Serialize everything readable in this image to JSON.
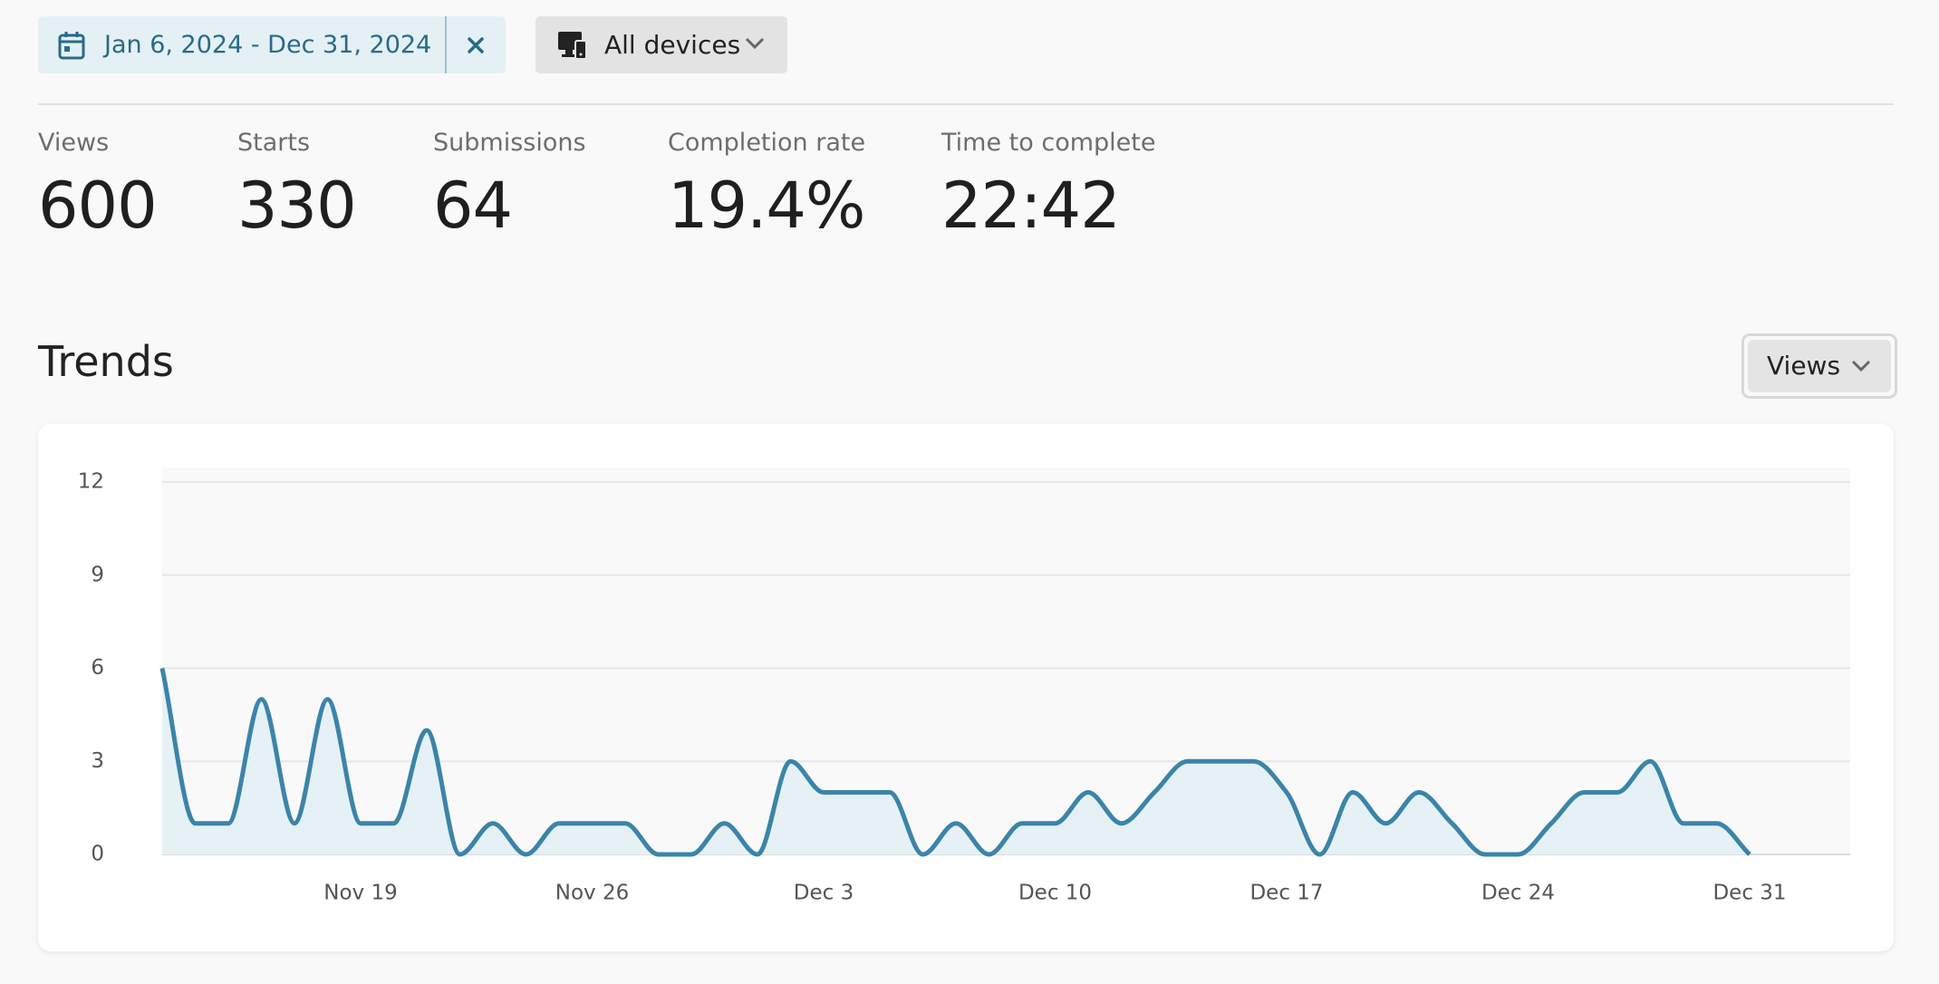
{
  "filters": {
    "date_range": "Jan 6, 2024 - Dec 31, 2024",
    "devices": "All devices"
  },
  "metrics": [
    {
      "label": "Views",
      "value": 600
    },
    {
      "label": "Starts",
      "value": 330
    },
    {
      "label": "Submissions",
      "value": 64
    },
    {
      "label": "Completion rate",
      "value": "19.4%"
    },
    {
      "label": "Time to complete",
      "value": "22:42"
    }
  ],
  "trends": {
    "title": "Trends",
    "metric_select": "Views"
  },
  "chart_data": {
    "type": "area",
    "color": "#3b84a9",
    "fill": "#e6f1f5",
    "grid": true,
    "categories": [
      null,
      null,
      null,
      null,
      null,
      null,
      "Nov 19",
      null,
      null,
      null,
      null,
      null,
      null,
      "Nov 26",
      null,
      null,
      null,
      null,
      null,
      null,
      "Dec 3",
      null,
      null,
      null,
      null,
      null,
      null,
      "Dec 10",
      null,
      null,
      null,
      null,
      null,
      null,
      "Dec 17",
      null,
      null,
      null,
      null,
      null,
      null,
      "Dec 24",
      null,
      null,
      null,
      null,
      null,
      null,
      "Dec 31"
    ],
    "values": [
      6,
      1,
      1,
      5,
      1,
      5,
      1,
      1,
      4,
      0,
      1,
      0,
      1,
      1,
      1,
      0,
      0,
      1,
      0,
      3,
      2,
      2,
      2,
      0,
      1,
      0,
      1,
      1,
      2,
      1,
      2,
      3,
      3,
      3,
      2,
      0,
      2,
      1,
      2,
      1,
      0,
      0,
      1,
      2,
      2,
      3,
      1,
      1,
      0
    ],
    "ylim": [
      0,
      12
    ],
    "yticks": [
      0,
      3,
      6,
      9,
      12
    ]
  }
}
